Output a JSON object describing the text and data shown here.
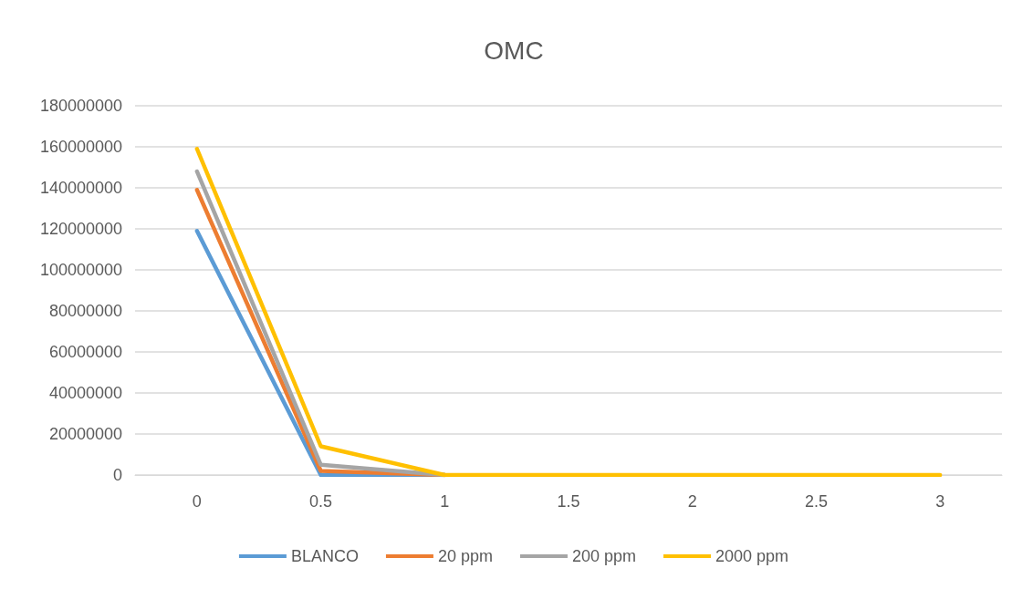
{
  "chart_data": {
    "type": "line",
    "title": "OMC",
    "categories": [
      "0",
      "0.5",
      "1",
      "1.5",
      "2",
      "2.5",
      "3"
    ],
    "series": [
      {
        "name": "BLANCO",
        "color": "#5b9bd5",
        "values": [
          119000000,
          0,
          0,
          null,
          null,
          null,
          null
        ]
      },
      {
        "name": "20 ppm",
        "color": "#ed7d31",
        "values": [
          139000000,
          2000000,
          0,
          null,
          null,
          null,
          null
        ]
      },
      {
        "name": "200 ppm",
        "color": "#a5a5a5",
        "values": [
          148000000,
          5000000,
          0,
          null,
          null,
          null,
          null
        ]
      },
      {
        "name": "2000 ppm",
        "color": "#ffc000",
        "values": [
          159000000,
          14000000,
          0,
          0,
          0,
          0,
          0
        ]
      }
    ],
    "ylim": [
      0,
      180000000
    ],
    "yticks": [
      0,
      20000000,
      40000000,
      60000000,
      80000000,
      100000000,
      120000000,
      140000000,
      160000000,
      180000000
    ],
    "grid": "y",
    "legend": "bottom",
    "marker": "none",
    "line_style": "solid"
  }
}
